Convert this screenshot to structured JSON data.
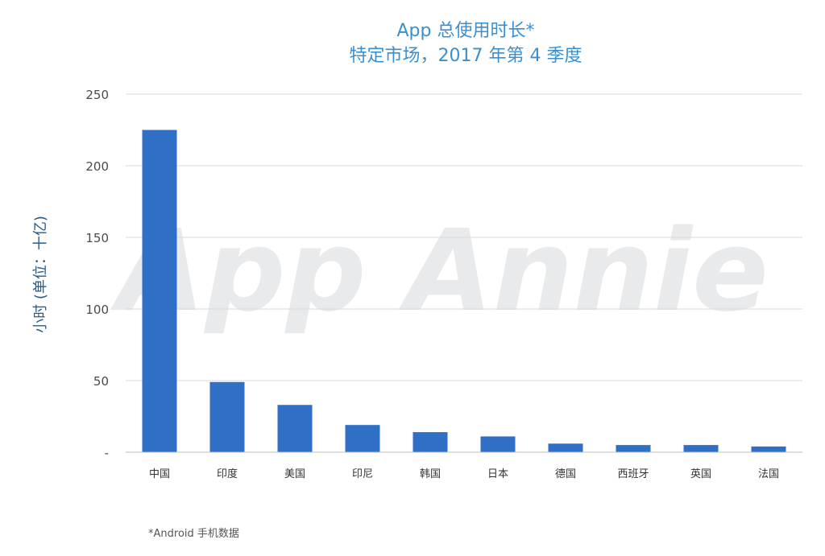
{
  "colors": {
    "title": "#3a8fd0",
    "bar": "#2f6fc6",
    "ylabel": "#2a5b8a",
    "grid": "#d9d9d9",
    "watermark": "#e9eaeb"
  },
  "watermark": "App Annie",
  "footnote": "*Android 手机数据",
  "chart_data": {
    "type": "bar",
    "title": "App 总使用时长*",
    "subtitle": "特定市场，2017 年第 4 季度",
    "ylabel": "小时 (单位：十亿)",
    "xlabel": "",
    "ylim": [
      0,
      250
    ],
    "yticks": [
      0,
      50,
      100,
      150,
      200,
      250
    ],
    "ytick_labels": [
      "-",
      "50",
      "100",
      "150",
      "200",
      "250"
    ],
    "grid": true,
    "categories": [
      "中国",
      "印度",
      "美国",
      "印尼",
      "韩国",
      "日本",
      "德国",
      "西班牙",
      "英国",
      "法国"
    ],
    "values": [
      225,
      49,
      33,
      19,
      14,
      11,
      6,
      5,
      5,
      4
    ]
  }
}
